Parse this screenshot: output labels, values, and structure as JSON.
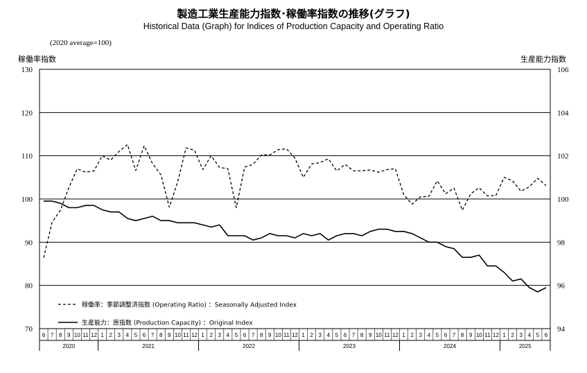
{
  "title_jp": "製造工業生産能力指数･稼働率指数の推移(グラフ)",
  "title_en": "Historical Data (Graph) for Indices of Production Capacity and Operating Ratio",
  "note": "(2020 average=100)",
  "chart_data": {
    "type": "line",
    "left_axis_label": "稼働率指数",
    "right_axis_label": "生産能力指数",
    "left_ylim": [
      70,
      130
    ],
    "left_ticks": [
      70,
      80,
      90,
      100,
      110,
      120,
      130
    ],
    "right_ylim": [
      94,
      106
    ],
    "right_ticks": [
      94,
      96,
      98,
      100,
      102,
      104,
      106
    ],
    "month_labels": [
      "6",
      "7",
      "8",
      "9",
      "10",
      "11",
      "12",
      "1",
      "2",
      "3",
      "4",
      "5",
      "6",
      "7",
      "8",
      "9",
      "10",
      "11",
      "12",
      "1",
      "2",
      "3",
      "4",
      "5",
      "6",
      "7",
      "8",
      "9",
      "10",
      "11",
      "12",
      "1",
      "2",
      "3",
      "4",
      "5",
      "6",
      "7",
      "8",
      "9",
      "10",
      "11",
      "12",
      "1",
      "2",
      "3",
      "4",
      "5",
      "6",
      "7",
      "8",
      "9",
      "10",
      "11",
      "12",
      "1",
      "2",
      "3",
      "4",
      "5",
      "6"
    ],
    "years": [
      {
        "label": "2020",
        "start": 0,
        "count": 7
      },
      {
        "label": "2021",
        "start": 7,
        "count": 12
      },
      {
        "label": "2022",
        "start": 19,
        "count": 12
      },
      {
        "label": "2023",
        "start": 31,
        "count": 12
      },
      {
        "label": "2024",
        "start": 43,
        "count": 12
      },
      {
        "label": "2025",
        "start": 55,
        "count": 6
      }
    ],
    "grid": "horizontal",
    "series": [
      {
        "name": "稼働率：季節調整済指数 (Operating Ratio) ：Seasonally Adjusted Index",
        "axis": "left",
        "style": "dashed",
        "values": [
          86.4,
          94.6,
          97.4,
          102.6,
          107.0,
          106.2,
          106.5,
          110.0,
          109.0,
          111.0,
          112.6,
          106.6,
          112.3,
          108.2,
          105.6,
          98.1,
          104.0,
          111.8,
          111.3,
          106.8,
          110.0,
          107.3,
          107.0,
          98.0,
          107.4,
          108.0,
          110.2,
          110.2,
          111.4,
          111.6,
          109.5,
          105.0,
          108.1,
          108.4,
          109.3,
          106.5,
          108.0,
          106.5,
          106.5,
          106.7,
          106.2,
          106.8,
          107.0,
          101.0,
          98.8,
          100.5,
          100.6,
          104.2,
          101.2,
          102.5,
          97.4,
          101.2,
          102.6,
          100.7,
          100.8,
          105.0,
          104.2,
          101.8,
          102.8,
          104.8,
          103.1
        ]
      },
      {
        "name": "生産能力：原指数 (Production Capacity) ：Original Index",
        "axis": "right",
        "style": "solid",
        "values": [
          99.9,
          99.9,
          99.8,
          99.6,
          99.6,
          99.7,
          99.7,
          99.5,
          99.4,
          99.4,
          99.1,
          99.0,
          99.1,
          99.2,
          99.0,
          99.0,
          98.9,
          98.9,
          98.9,
          98.8,
          98.7,
          98.8,
          98.3,
          98.3,
          98.3,
          98.1,
          98.2,
          98.4,
          98.3,
          98.3,
          98.2,
          98.4,
          98.3,
          98.4,
          98.1,
          98.3,
          98.4,
          98.4,
          98.3,
          98.5,
          98.6,
          98.6,
          98.5,
          98.5,
          98.4,
          98.2,
          98.0,
          98.0,
          97.8,
          97.7,
          97.3,
          97.3,
          97.4,
          96.9,
          96.9,
          96.6,
          96.2,
          96.3,
          95.9,
          95.7,
          95.9
        ]
      }
    ]
  }
}
